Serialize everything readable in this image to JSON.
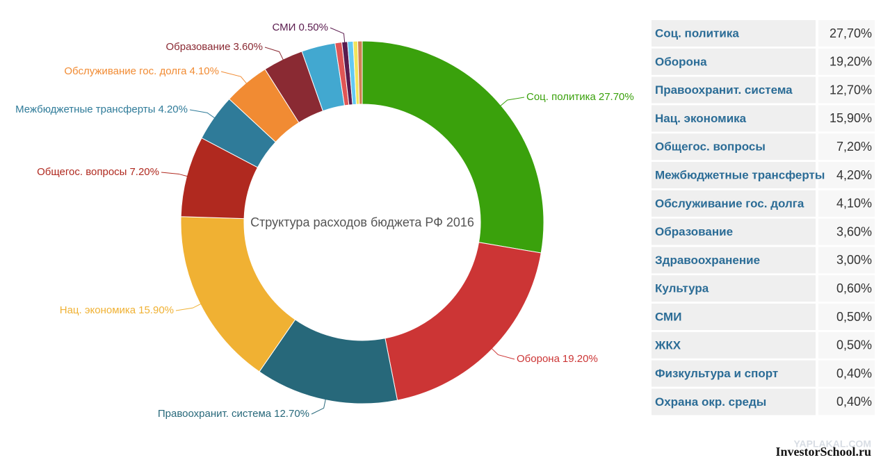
{
  "chart_data": {
    "type": "donut",
    "title": "Структура расходов бюджета РФ 2016",
    "categories": [
      "Соц. политика",
      "Оборона",
      "Правоохранит. система",
      "Нац. экономика",
      "Общегос. вопросы",
      "Межбюджетные трансферты",
      "Обслуживание гос. долга",
      "Образование",
      "Здравоохранение",
      "Культура",
      "СМИ",
      "ЖКХ",
      "Физкультура и спорт",
      "Охрана окр. среды"
    ],
    "values": [
      27.7,
      19.2,
      12.7,
      15.9,
      7.2,
      4.2,
      4.1,
      3.6,
      3.0,
      0.6,
      0.5,
      0.5,
      0.4,
      0.4
    ],
    "value_labels": [
      "27.70%",
      "19.20%",
      "12.70%",
      "15.90%",
      "7.20%",
      "4.20%",
      "4.10%",
      "3.60%",
      null,
      null,
      "0.50%",
      null,
      null,
      null
    ],
    "colors": [
      "#3aa10c",
      "#cc3535",
      "#27687a",
      "#f0b133",
      "#b0291f",
      "#2f7b99",
      "#f18b33",
      "#8a2a33",
      "#42a8d0",
      "#e05555",
      "#5a1b4e",
      "#63c9f2",
      "#f2e45a",
      "#d08052"
    ]
  },
  "table": {
    "rows": [
      [
        "Соц. политика",
        "27,70%"
      ],
      [
        "Оборона",
        "19,20%"
      ],
      [
        "Правоохранит. система",
        "12,70%"
      ],
      [
        "Нац. экономика",
        "15,90%"
      ],
      [
        "Общегос. вопросы",
        "7,20%"
      ],
      [
        "Межбюджетные трансферты",
        "4,20%"
      ],
      [
        "Обслуживание гос. долга",
        "4,10%"
      ],
      [
        "Образование",
        "3,60%"
      ],
      [
        "Здравоохранение",
        "3,00%"
      ],
      [
        "Культура",
        "0,60%"
      ],
      [
        "СМИ",
        "0,50%"
      ],
      [
        "ЖКХ",
        "0,50%"
      ],
      [
        "Физкультура и спорт",
        "0,40%"
      ],
      [
        "Охрана окр. среды",
        "0,40%"
      ]
    ]
  },
  "watermark": {
    "main": "InvestorSchool.ru",
    "faint": "YAPLAKAL.COM"
  }
}
